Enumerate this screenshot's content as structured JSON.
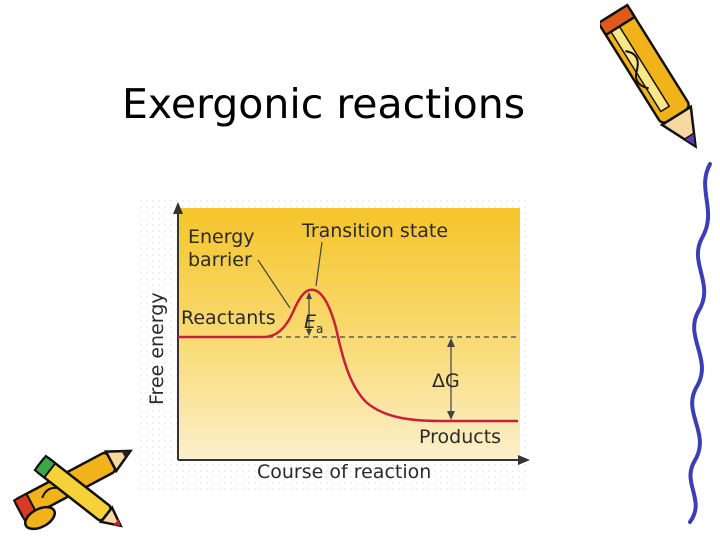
{
  "slide": {
    "title": "Exergonic reactions"
  },
  "diagram": {
    "ylabel": "Free energy",
    "xlabel": "Course of reaction",
    "labels": {
      "energy_barrier_line1": "Energy",
      "energy_barrier_line2": "barrier",
      "transition_state": "Transition state",
      "reactants": "Reactants",
      "activation_energy": "E",
      "activation_energy_sub": "a",
      "delta_g": "ΔG",
      "products": "Products"
    },
    "colors": {
      "background": "#f6c82d",
      "curve": "#c8203a",
      "axes": "#333333"
    }
  },
  "decorations": {
    "top_right": "pencil-icon",
    "right_edge": "squiggle-line",
    "bottom_left": "pencils-icon"
  }
}
